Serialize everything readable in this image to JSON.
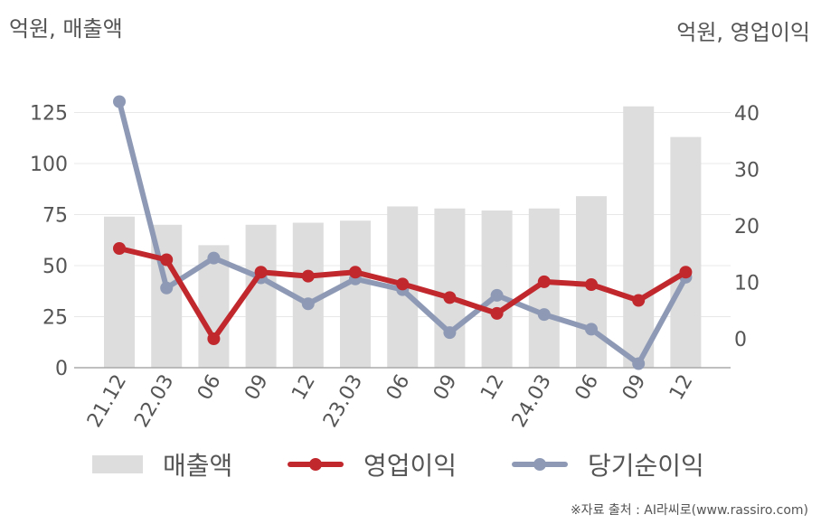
{
  "unit_left": "억원, 매출액",
  "unit_right": "억원, 영업이익",
  "source": "※자료 출처 : AI라씨로(www.rassiro.com)",
  "chart_data": {
    "type": "bar+line",
    "categories": [
      "21.12",
      "22.03",
      "06",
      "09",
      "12",
      "23.03",
      "06",
      "09",
      "12",
      "24.03",
      "06",
      "09",
      "12"
    ],
    "left_axis": {
      "ticks": [
        "0",
        "25",
        "50",
        "75",
        "100",
        "125"
      ],
      "ylim": [
        0,
        150
      ]
    },
    "right_axis": {
      "ticks": [
        "0",
        "10",
        "20",
        "30",
        "40"
      ],
      "ylim": [
        -5,
        50
      ]
    },
    "grid": true,
    "legend_position": "bottom",
    "series": [
      {
        "name": "매출액",
        "type": "bar",
        "axis": "left",
        "color": "#dddddd",
        "values": [
          74,
          70,
          60,
          70,
          71,
          72,
          79,
          78,
          77,
          78,
          84,
          128,
          113
        ]
      },
      {
        "name": "영업이익",
        "type": "line",
        "axis": "right",
        "color": "#c0282d",
        "values": [
          16,
          14,
          0,
          11.8,
          11.1,
          11.8,
          9.7,
          7.3,
          4.5,
          10.1,
          9.6,
          6.8,
          11.8
        ]
      },
      {
        "name": "당기순이익",
        "type": "line",
        "axis": "right",
        "color": "#8e9ab5",
        "values": [
          42,
          9,
          14.3,
          10.8,
          6.2,
          10.6,
          8.7,
          1.1,
          7.7,
          4.3,
          1.7,
          -4.4,
          10.9
        ]
      }
    ]
  }
}
